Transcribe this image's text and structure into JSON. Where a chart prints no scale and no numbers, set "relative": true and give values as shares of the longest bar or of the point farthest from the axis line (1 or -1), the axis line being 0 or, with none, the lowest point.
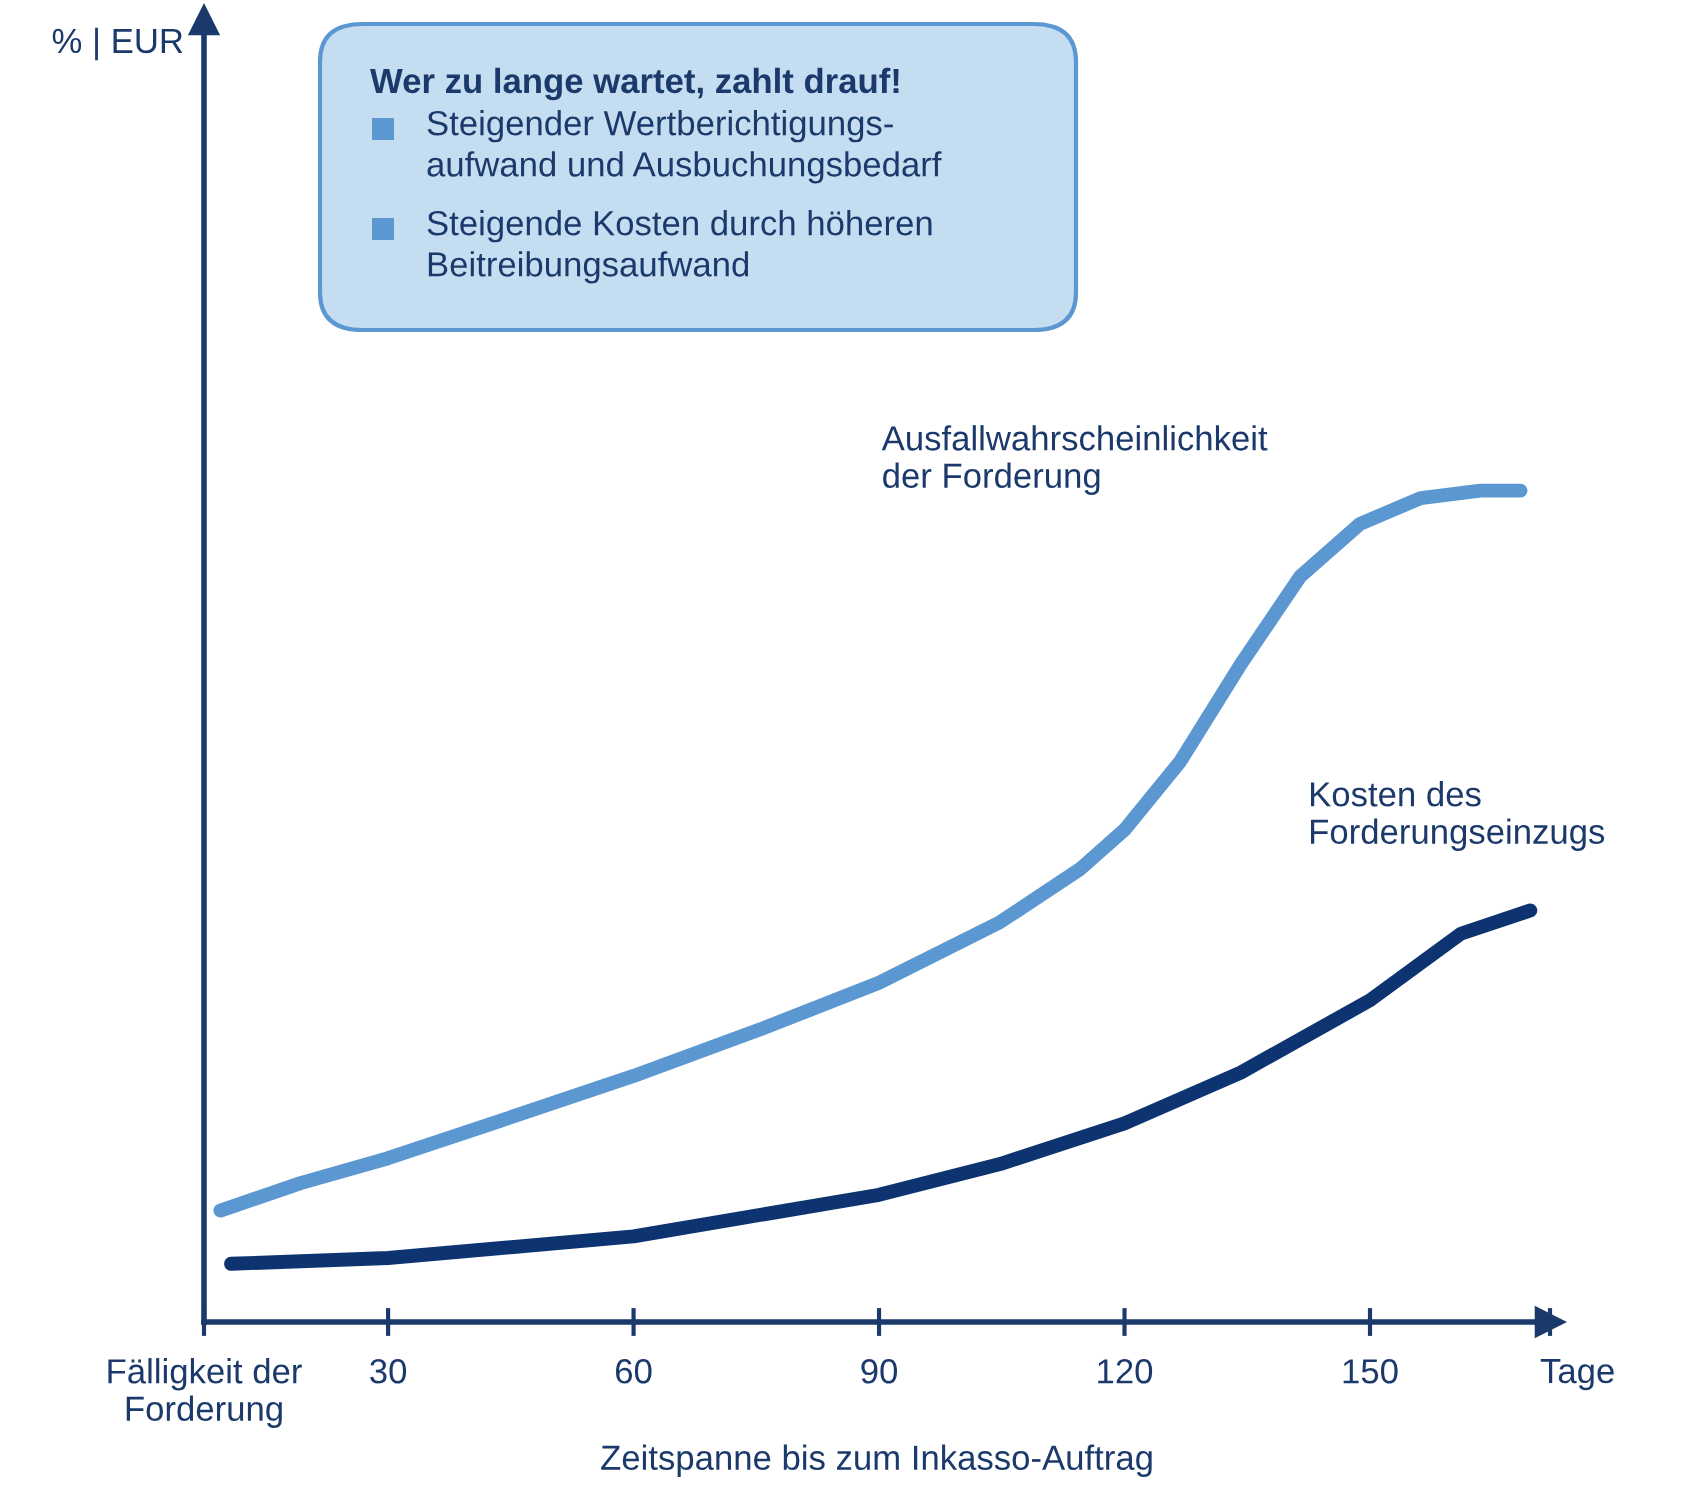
{
  "chart_data": {
    "type": "line",
    "relative": true,
    "xlabel": "Zeitspanne bis zum Inkasso-Auftrag",
    "xlim": [
      7.5,
      172
    ],
    "xticks": [
      {
        "value": 7.5,
        "label": "Fälligkeit der\nForderung"
      },
      30,
      60,
      90,
      120,
      150,
      {
        "value": 172,
        "label": null
      }
    ],
    "annotations": [
      "Wer zu lange wartet, zahlt drauf!",
      "Steigender Wertberichtigungs-\naufwand und Ausbuchungsbedarf",
      "Steigende Kosten durch höheren\nBeitreibungsaufwand",
      "Tage",
      "% | EUR"
    ],
    "grid": false,
    "legend": false,
    "marker": "none",
    "line_style": "solid",
    "series": [
      {
        "name": "Ausfallwahrscheinlichkeit\nder Forderung",
        "color": "#5b97d1",
        "x": [
          9.5,
          19.3,
          30,
          43.7,
          60,
          75.5,
          90,
          104.8,
          114.6,
          120,
          126.8,
          134.2,
          141.5,
          148.8,
          156.2,
          163.5,
          168.4
        ],
        "values": [
          0.134,
          0.167,
          0.197,
          0.242,
          0.296,
          0.352,
          0.408,
          0.481,
          0.545,
          0.592,
          0.674,
          0.791,
          0.897,
          0.96,
          0.991,
          1.0,
          1.0
        ]
      },
      {
        "name": "Kosten des\nForderungseinzugs",
        "color": "#0d3470",
        "x": [
          10.8,
          30,
          60,
          90,
          104.8,
          120,
          134.2,
          150,
          161.1,
          169.6
        ],
        "values": [
          0.07,
          0.077,
          0.103,
          0.153,
          0.19,
          0.239,
          0.3,
          0.387,
          0.467,
          0.495
        ]
      }
    ]
  }
}
